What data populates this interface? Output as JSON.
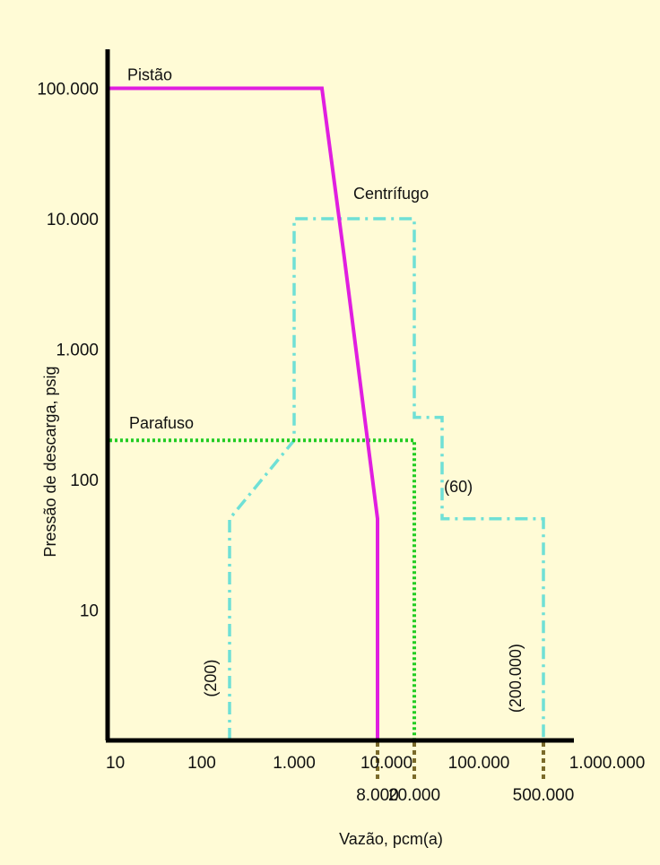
{
  "chart_data": {
    "type": "line",
    "xlabel": "Vazão, pcm(a)",
    "ylabel": "Pressão de descarga, psig",
    "x_scale": "log",
    "y_scale": "log",
    "xlim": [
      10,
      1000000
    ],
    "ylim": [
      1,
      100000
    ],
    "grid": false,
    "x_tick_labels": [
      {
        "value": 10,
        "label": "10"
      },
      {
        "value": 100,
        "label": "100"
      },
      {
        "value": 1000,
        "label": "1.000"
      },
      {
        "value": 10000,
        "label": "10.000"
      },
      {
        "value": 100000,
        "label": "100.000"
      },
      {
        "value": 1000000,
        "label": "1.000.000"
      }
    ],
    "x_marker_labels": [
      {
        "value": 8000,
        "label": "8.000"
      },
      {
        "value": 20000,
        "label": "20.000"
      },
      {
        "value": 500000,
        "label": "500.000"
      }
    ],
    "y_tick_labels": [
      {
        "value": 100000,
        "label": "100.000"
      },
      {
        "value": 10000,
        "label": "10.000"
      },
      {
        "value": 1000,
        "label": "1.000"
      },
      {
        "value": 100,
        "label": "100"
      },
      {
        "value": 10,
        "label": "10"
      }
    ],
    "series": [
      {
        "name": "Pistão",
        "color": "#e01ee0",
        "style": "solid",
        "x": [
          10,
          2000,
          3500,
          8000,
          8000
        ],
        "y": [
          100000,
          100000,
          5000,
          50,
          1
        ]
      },
      {
        "name": "Centrífugo",
        "color": "#6fe0d6",
        "style": "dash-dot",
        "x": [
          200,
          200,
          1000,
          1000,
          20000,
          20000,
          40000,
          40000,
          500000,
          500000
        ],
        "y": [
          1,
          50,
          200,
          10000,
          10000,
          300,
          300,
          50,
          50,
          1
        ]
      },
      {
        "name": "Parafuso",
        "color": "#22cc22",
        "style": "dotted",
        "x": [
          10,
          20000,
          20000
        ],
        "y": [
          200,
          200,
          1
        ]
      }
    ],
    "annotations": [
      {
        "text": "(200)",
        "x": 200,
        "y": 3,
        "rotated": true
      },
      {
        "text": "(60)",
        "x": 60000,
        "y": 80,
        "rotated": false
      },
      {
        "text": "(200.000)",
        "x": 400000,
        "y": 3,
        "rotated": true
      }
    ]
  }
}
